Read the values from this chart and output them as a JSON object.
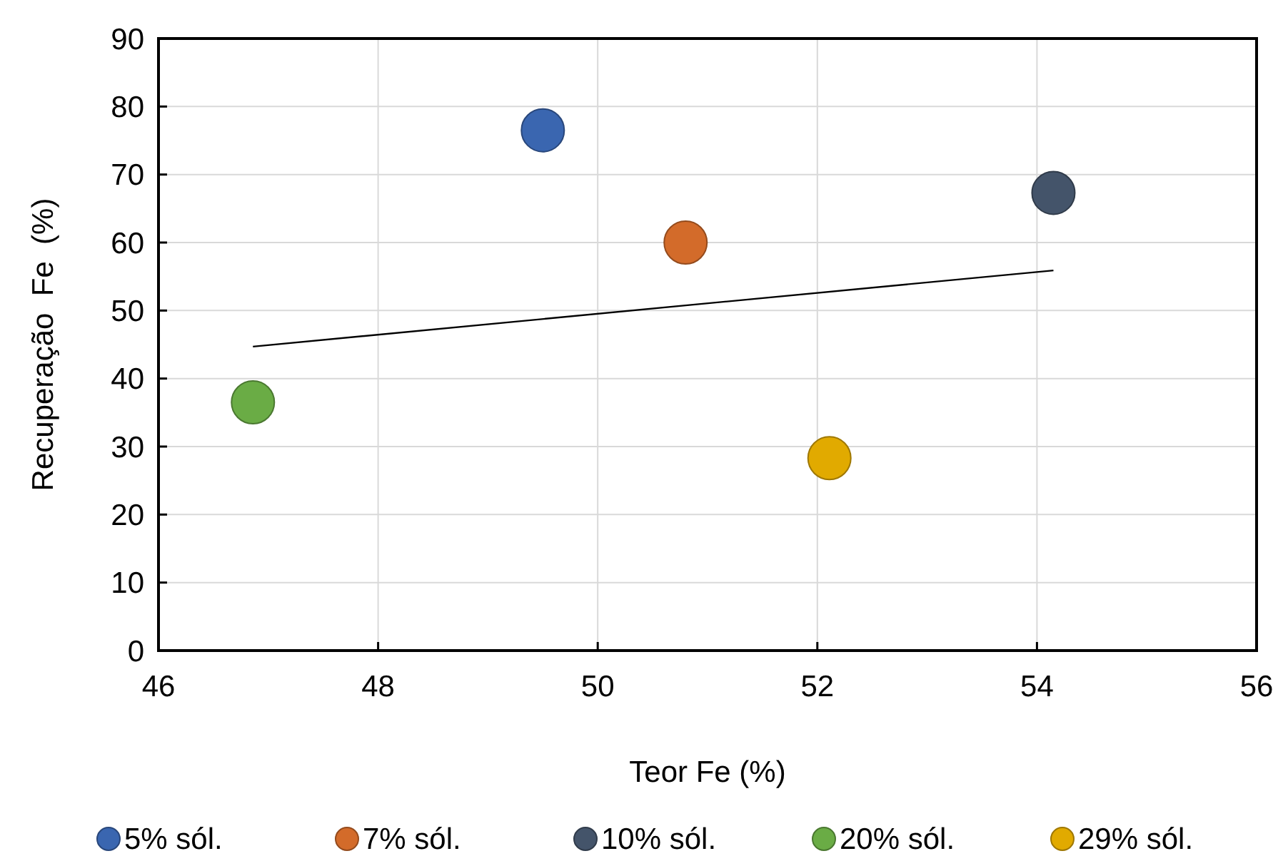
{
  "chart_data": {
    "type": "scatter",
    "xlabel": "Teor Fe (%)",
    "ylabel": "Recuperação  Fe  (%)",
    "xlim": [
      46,
      56
    ],
    "xticks": [
      46,
      48,
      50,
      52,
      54,
      56
    ],
    "ylim": [
      0,
      90
    ],
    "yticks": [
      0,
      10,
      20,
      30,
      40,
      50,
      60,
      70,
      80,
      90
    ],
    "grid": true,
    "legend": "bottom",
    "marker": "circle",
    "series": [
      {
        "name": "5% sól.",
        "color": "#3a66b0",
        "x": [
          49.5
        ],
        "values": [
          76.5
        ]
      },
      {
        "name": "7% sól.",
        "color": "#d36b2a",
        "x": [
          50.8
        ],
        "values": [
          60.0
        ]
      },
      {
        "name": "10% sól.",
        "color": "#44546a",
        "x": [
          54.15
        ],
        "values": [
          67.3
        ]
      },
      {
        "name": "20% sól.",
        "color": "#6aac45",
        "x": [
          46.86
        ],
        "values": [
          36.5
        ]
      },
      {
        "name": "29% sól.",
        "color": "#e1aa00",
        "x": [
          52.11
        ],
        "values": [
          28.3
        ]
      },
      {
        "type": "line",
        "color": "#000000",
        "marker": "none",
        "x": [
          46.86,
          54.15
        ],
        "values": [
          44.7,
          55.9
        ]
      }
    ]
  }
}
